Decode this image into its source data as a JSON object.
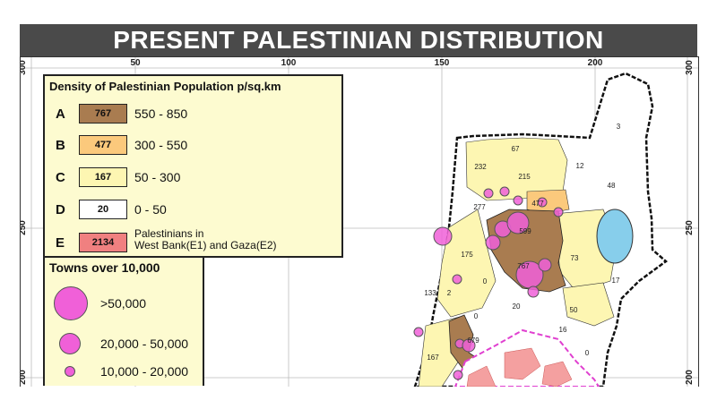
{
  "title": "PRESENT PALESTINIAN DISTRIBUTION",
  "axes": {
    "top_ticks": [
      "50",
      "100",
      "150",
      "200"
    ],
    "left_ticks": [
      "300",
      "250",
      "200"
    ],
    "right_ticks": [
      "300",
      "250",
      "200"
    ]
  },
  "legend": {
    "title": "Density of Palestinian Population p/sq.km",
    "rows": [
      {
        "letter": "A",
        "swatch_value": "767",
        "range": "550 - 850",
        "color": "#a97c50"
      },
      {
        "letter": "B",
        "swatch_value": "477",
        "range": "300 - 550",
        "color": "#fbc97c"
      },
      {
        "letter": "C",
        "swatch_value": "167",
        "range": "50 - 300",
        "color": "#fdf6b2"
      },
      {
        "letter": "D",
        "swatch_value": "20",
        "range": "0 - 50",
        "color": "#ffffff"
      },
      {
        "letter": "E",
        "swatch_value": "2134",
        "range_line1": "Palestinians in",
        "range_line2": "West Bank(E1) and Gaza(E2)",
        "color": "#f08080"
      }
    ]
  },
  "towns": {
    "title": "Towns over 10,000",
    "items": [
      {
        "label": ">50,000"
      },
      {
        "label": "20,000 - 50,000"
      },
      {
        "label": "10,000 - 20,000"
      }
    ],
    "dot_color": "#f060d8"
  },
  "map_labels": [
    "3",
    "67",
    "12",
    "48",
    "232",
    "215",
    "277",
    "477",
    "599",
    "175",
    "767",
    "73",
    "17",
    "133",
    "2",
    "0",
    "20",
    "50",
    "0",
    "679",
    "16",
    "0",
    "167"
  ],
  "colors": {
    "lake": "#87ceeb",
    "west_bank": "#f4a0a0",
    "boundary_pink": "#e040d0"
  }
}
